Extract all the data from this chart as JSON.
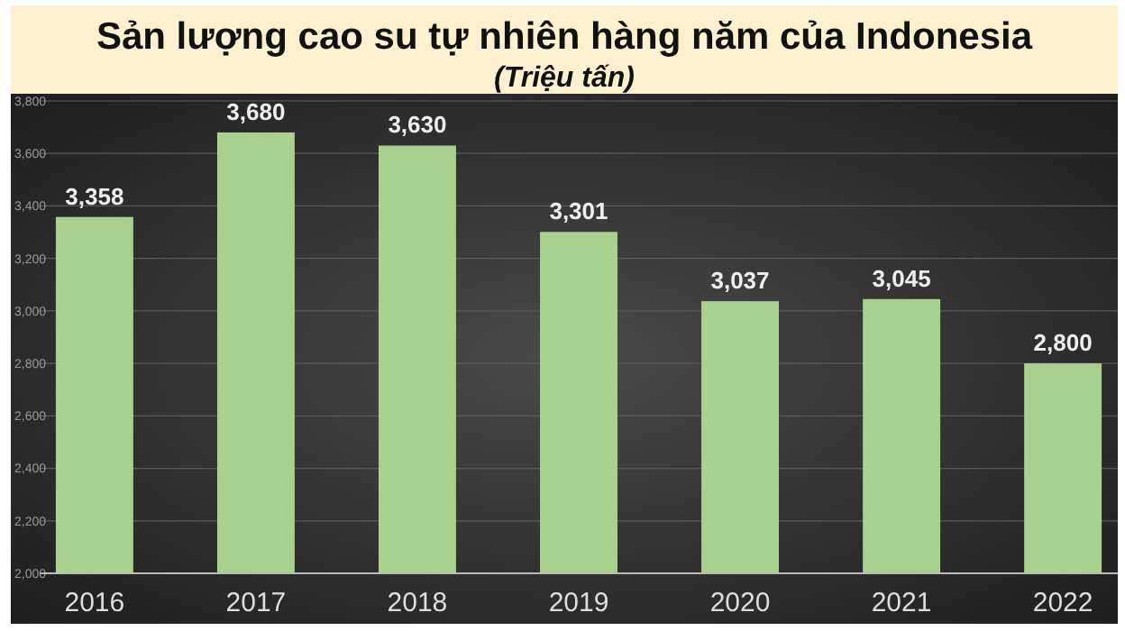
{
  "chart_data": {
    "type": "bar",
    "title": "Sản lượng cao su tự nhiên hàng năm của Indonesia",
    "subtitle": "(Triệu tấn)",
    "categories": [
      "2016",
      "2017",
      "2018",
      "2019",
      "2020",
      "2021",
      "2022"
    ],
    "values": [
      3358,
      3680,
      3630,
      3301,
      3037,
      3045,
      2800
    ],
    "color": "#a9d18e",
    "value_labels": [
      "3,358",
      "3,680",
      "3,630",
      "3,301",
      "3,037",
      "3,045",
      "2,800"
    ],
    "ylim": [
      2000,
      3800
    ],
    "yticks": [
      {
        "value": 2000,
        "label": "2,000"
      },
      {
        "value": 2200,
        "label": "2,200"
      },
      {
        "value": 2400,
        "label": "2,400"
      },
      {
        "value": 2600,
        "label": "2,600"
      },
      {
        "value": 2800,
        "label": "2,800"
      },
      {
        "value": 3000,
        "label": "3,000"
      },
      {
        "value": 3200,
        "label": "3,200"
      },
      {
        "value": 3400,
        "label": "3,400"
      },
      {
        "value": 3600,
        "label": "3,600"
      },
      {
        "value": 3800,
        "label": "3,800"
      }
    ],
    "grid": "y"
  }
}
